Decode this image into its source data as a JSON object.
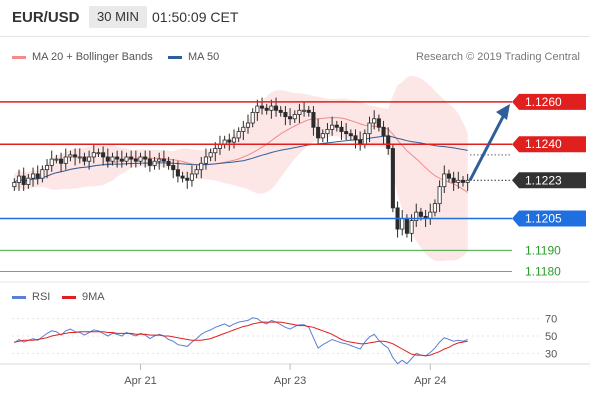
{
  "header": {
    "symbol": "EUR/USD",
    "timeframe": "30 MIN",
    "time": "01:50:09 CET"
  },
  "legend": {
    "ma20_label": "MA 20 + Bollinger Bands",
    "ma20_color": "#f28b8b",
    "ma50_label": "MA 50",
    "ma50_color": "#2f5f9a",
    "rsi_label": "RSI",
    "rsi_color": "#5b7fd6",
    "ma9_label": "9MA",
    "ma9_color": "#e01f1f"
  },
  "watermark": "Research © 2019 Trading Central",
  "chart_data": {
    "type": "candlestick",
    "symbol": "EUR/USD",
    "interval": "30 MIN",
    "ylim": [
      1.1176,
      1.1275
    ],
    "x_ticks": [
      {
        "label": "Apr 21",
        "index": 27
      },
      {
        "label": "Apr 23",
        "index": 59
      },
      {
        "label": "Apr 24",
        "index": 89
      }
    ],
    "close": [
      1.1222,
      1.1225,
      1.1221,
      1.1224,
      1.1226,
      1.1224,
      1.1228,
      1.123,
      1.1233,
      1.1233,
      1.1231,
      1.1234,
      1.1235,
      1.1234,
      1.1234,
      1.1232,
      1.1234,
      1.1236,
      1.1236,
      1.1234,
      1.1232,
      1.1234,
      1.1233,
      1.1232,
      1.1234,
      1.1233,
      1.1232,
      1.1234,
      1.1233,
      1.123,
      1.1232,
      1.1233,
      1.1232,
      1.123,
      1.1228,
      1.1225,
      1.1224,
      1.1223,
      1.1226,
      1.1228,
      1.1231,
      1.1234,
      1.1236,
      1.1238,
      1.124,
      1.1242,
      1.1241,
      1.1243,
      1.1246,
      1.1248,
      1.125,
      1.1255,
      1.1258,
      1.1257,
      1.1256,
      1.1258,
      1.1256,
      1.1255,
      1.1253,
      1.1252,
      1.1254,
      1.1256,
      1.1256,
      1.1255,
      1.1248,
      1.1243,
      1.1245,
      1.1247,
      1.1249,
      1.1248,
      1.1246,
      1.1245,
      1.1244,
      1.1242,
      1.124,
      1.1245,
      1.125,
      1.1252,
      1.1248,
      1.1244,
      1.1238,
      1.121,
      1.12,
      1.1205,
      1.1198,
      1.1204,
      1.1208,
      1.1206,
      1.1205,
      1.1208,
      1.1212,
      1.122,
      1.1226,
      1.1224,
      1.1222,
      1.1223,
      1.1222,
      1.1223
    ],
    "support_resistance": [
      {
        "value": 1.126,
        "label": "1.1260",
        "color": "#e01f1f",
        "style": "solid"
      },
      {
        "value": 1.124,
        "label": "1.1240",
        "color": "#e01f1f",
        "style": "solid"
      },
      {
        "value": 1.1223,
        "label": "1.1223",
        "color": "#333333",
        "style": "dotted"
      },
      {
        "value": 1.1205,
        "label": "1.1205",
        "color": "#1f6fe0",
        "style": "solid"
      },
      {
        "value": 1.119,
        "label": "1.1190",
        "color": "#2a9d2a",
        "style": "thin"
      },
      {
        "value": 1.118,
        "label": "1.1180",
        "color": "#2a9d2a",
        "style": "thin"
      }
    ],
    "forecast_arrow": {
      "from": 1.1223,
      "to": 1.1259
    },
    "rsi": {
      "ylim": [
        20,
        80
      ],
      "ticks": [
        70,
        50,
        30
      ],
      "values": [
        42,
        46,
        43,
        45,
        47,
        45,
        49,
        53,
        56,
        55,
        51,
        56,
        58,
        55,
        54,
        51,
        54,
        57,
        56,
        53,
        50,
        53,
        52,
        50,
        54,
        52,
        50,
        53,
        51,
        47,
        50,
        52,
        50,
        46,
        44,
        40,
        39,
        38,
        43,
        47,
        52,
        55,
        57,
        60,
        62,
        64,
        61,
        64,
        66,
        67,
        68,
        71,
        70,
        66,
        64,
        68,
        66,
        63,
        60,
        58,
        61,
        63,
        63,
        60,
        48,
        36,
        40,
        43,
        46,
        44,
        42,
        41,
        39,
        37,
        35,
        43,
        49,
        52,
        45,
        40,
        36,
        25,
        18,
        22,
        18,
        24,
        30,
        28,
        27,
        31,
        36,
        43,
        48,
        46,
        44,
        45,
        44,
        46
      ],
      "ma9": [
        43,
        44,
        45,
        45,
        45,
        46,
        47,
        48,
        50,
        51,
        52,
        53,
        54,
        54,
        55,
        55,
        55,
        55,
        55,
        55,
        54,
        54,
        53,
        53,
        53,
        53,
        52,
        52,
        52,
        51,
        51,
        51,
        50,
        50,
        49,
        48,
        47,
        46,
        45,
        45,
        45,
        46,
        47,
        49,
        51,
        53,
        55,
        57,
        59,
        61,
        62,
        64,
        65,
        66,
        66,
        66,
        66,
        66,
        65,
        64,
        63,
        62,
        62,
        61,
        60,
        58,
        56,
        54,
        52,
        49,
        46,
        44,
        43,
        42,
        41,
        41,
        42,
        43,
        44,
        44,
        43,
        41,
        38,
        35,
        32,
        29,
        28,
        28,
        27,
        28,
        30,
        32,
        35,
        37,
        40,
        42,
        43,
        44
      ]
    }
  }
}
